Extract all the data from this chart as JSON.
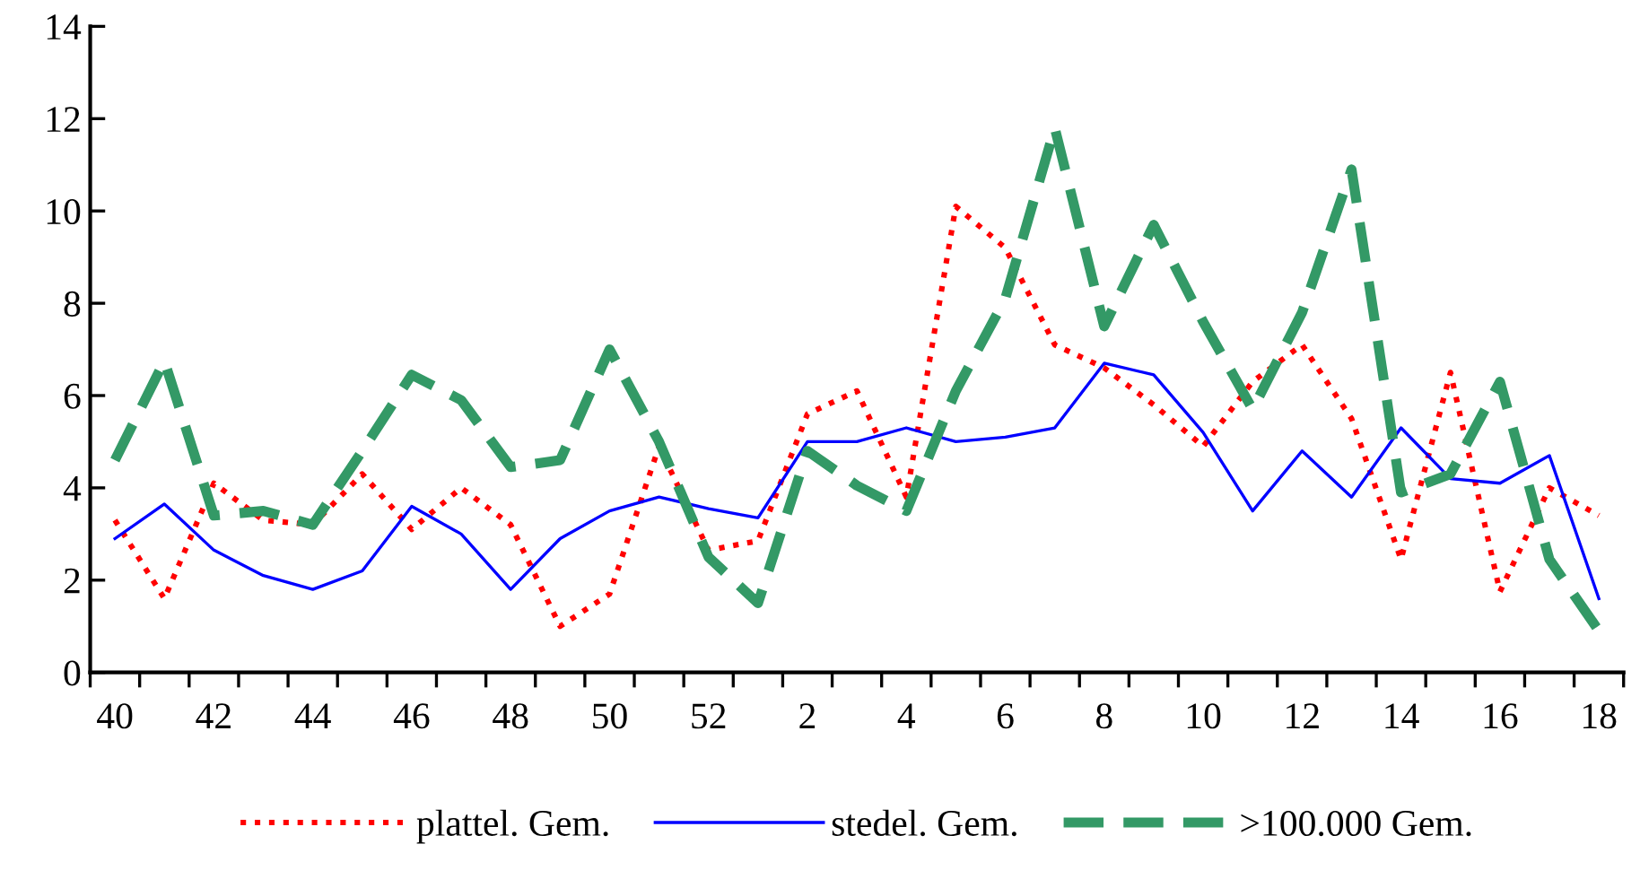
{
  "chart_data": {
    "type": "line",
    "categories": [
      "40",
      null,
      "42",
      null,
      "44",
      null,
      "46",
      null,
      "48",
      null,
      "50",
      null,
      "52",
      null,
      "2",
      null,
      "4",
      null,
      "6",
      null,
      "8",
      null,
      "10",
      null,
      "12",
      null,
      "14",
      null,
      "16",
      null,
      "18"
    ],
    "series": [
      {
        "name": "plattel. Gem.",
        "color": "#ff0000",
        "line_style": "dotted",
        "values": [
          3.3,
          1.6,
          4.1,
          3.3,
          3.2,
          4.3,
          3.1,
          4.0,
          3.2,
          1.0,
          1.7,
          4.9,
          2.65,
          2.85,
          5.6,
          6.1,
          3.8,
          10.1,
          9.2,
          7.1,
          6.6,
          5.8,
          4.9,
          6.3,
          7.1,
          5.5,
          2.45,
          6.5,
          1.75,
          4.0,
          3.4
        ]
      },
      {
        "name": "stedel. Gem.",
        "color": "#0000ff",
        "line_style": "solid",
        "values": [
          2.9,
          3.65,
          2.65,
          2.1,
          1.8,
          2.2,
          3.6,
          3.0,
          1.8,
          2.9,
          3.5,
          3.8,
          3.55,
          3.35,
          5.0,
          5.0,
          5.3,
          5.0,
          5.1,
          5.3,
          6.7,
          6.45,
          5.2,
          3.5,
          4.8,
          3.8,
          5.3,
          4.2,
          4.1,
          4.7,
          1.6
        ]
      },
      {
        "name": ">100.000 Gem.",
        "color": "#339966",
        "line_style": "dashed",
        "values": [
          4.6,
          6.75,
          3.4,
          3.5,
          3.2,
          4.8,
          6.45,
          5.9,
          4.45,
          4.6,
          7.0,
          5.0,
          2.5,
          1.5,
          4.8,
          4.05,
          3.5,
          6.1,
          8.1,
          11.8,
          7.5,
          9.7,
          7.6,
          5.7,
          7.8,
          10.9,
          3.9,
          4.3,
          6.3,
          2.45,
          0.9
        ]
      }
    ],
    "ylim": [
      0,
      14
    ],
    "yticks": [
      0,
      2,
      4,
      6,
      8,
      10,
      12,
      14
    ],
    "grid": false,
    "legend": "bottom"
  }
}
